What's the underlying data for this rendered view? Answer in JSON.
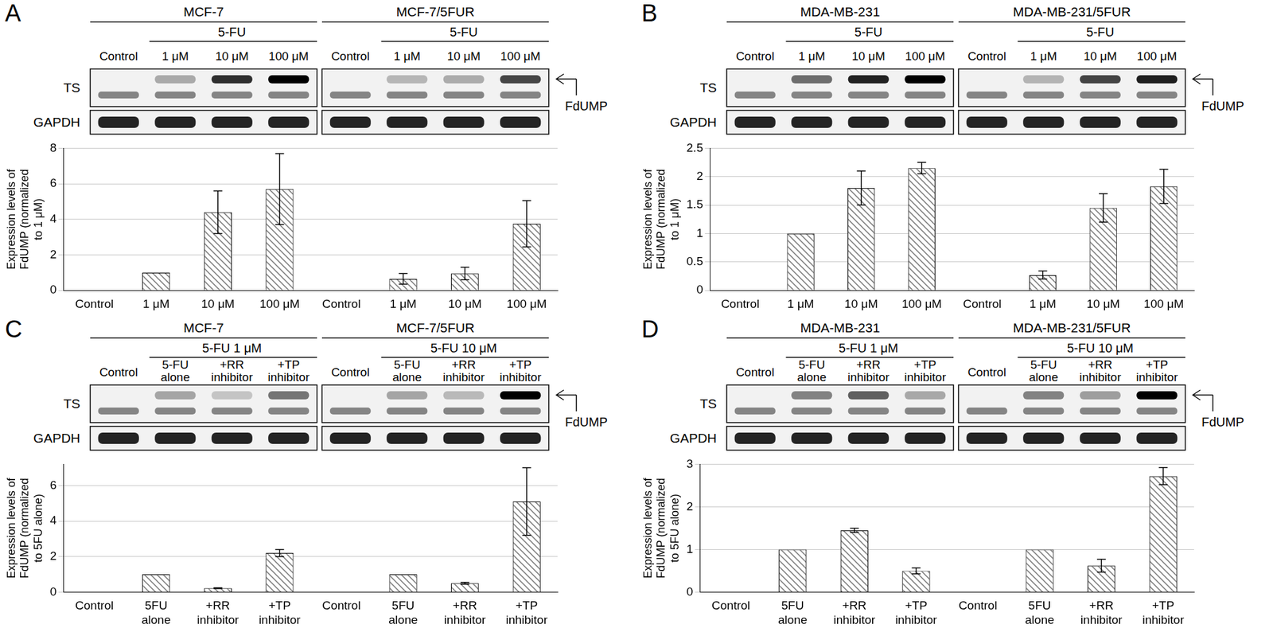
{
  "chart_data": [
    {
      "type": "bar",
      "title": "A",
      "y_label": [
        "Expression levels of",
        "FdUMP (normalized",
        "to 1 μM)"
      ],
      "categories": [
        "Control",
        "1 μM",
        "10 μM",
        "100 μM",
        "Control",
        "1 μM",
        "10 μM",
        "100 μM"
      ],
      "values": [
        null,
        1,
        4.4,
        5.7,
        null,
        0.65,
        0.95,
        3.75
      ],
      "errors": [
        null,
        null,
        1.2,
        2.0,
        null,
        0.3,
        0.35,
        1.3
      ],
      "color": "#808080",
      "ylim": [
        0,
        8
      ],
      "yticks": [
        0,
        2,
        4,
        6,
        8
      ],
      "grid": true,
      "annotations": {
        "groups": [
          {
            "label": "MCF-7",
            "treatment": "5-FU",
            "lanes": [
              "Control",
              "1 μM",
              "10 μM",
              "100 μM"
            ]
          },
          {
            "label": "MCF-7/5FUR",
            "treatment": "5-FU",
            "lanes": [
              "Control",
              "1 μM",
              "10 μM",
              "100 μM"
            ]
          }
        ],
        "rows": [
          "TS",
          "GAPDH"
        ],
        "band": "FdUMP"
      }
    },
    {
      "type": "bar",
      "title": "B",
      "y_label": [
        "Expression levels of",
        "FdUMP (normalized",
        "to 1 μM)"
      ],
      "categories": [
        "Control",
        "1 μM",
        "10 μM",
        "100 μM",
        "Control",
        "1 μM",
        "10 μM",
        "100 μM"
      ],
      "values": [
        null,
        1,
        1.8,
        2.15,
        null,
        0.27,
        1.45,
        1.83
      ],
      "errors": [
        null,
        null,
        0.3,
        0.1,
        null,
        0.07,
        0.25,
        0.3
      ],
      "color": "#808080",
      "ylim": [
        0,
        2.5
      ],
      "yticks": [
        0,
        0.5,
        1,
        1.5,
        2,
        2.5
      ],
      "grid": true,
      "annotations": {
        "groups": [
          {
            "label": "MDA-MB-231",
            "treatment": "5-FU",
            "lanes": [
              "Control",
              "1 μM",
              "10 μM",
              "100 μM"
            ]
          },
          {
            "label": "MDA-MB-231/5FUR",
            "treatment": "5-FU",
            "lanes": [
              "Control",
              "1 μM",
              "10 μM",
              "100 μM"
            ]
          }
        ],
        "rows": [
          "TS",
          "GAPDH"
        ],
        "band": "FdUMP"
      }
    },
    {
      "type": "bar",
      "title": "C",
      "y_label": [
        "Expression levels of",
        "FdUMP (normalized",
        "to 5FU alone)"
      ],
      "categories": [
        "Control",
        "5FU alone",
        "+RR inhibitor",
        "+TP inhibitor",
        "Control",
        "5FU alone",
        "+RR inhibitor",
        "+TP inhibitor"
      ],
      "values": [
        null,
        1,
        0.22,
        2.2,
        null,
        1,
        0.5,
        5.1
      ],
      "errors": [
        null,
        null,
        0.02,
        0.2,
        null,
        null,
        0.05,
        1.9
      ],
      "color": "#808080",
      "ylim": [
        0,
        7.2
      ],
      "yticks": [
        0,
        2,
        4,
        6
      ],
      "grid": true,
      "annotations": {
        "groups": [
          {
            "label": "MCF-7",
            "treatment": "5-FU 1 μM",
            "lanes": [
              "Control",
              "5-FU alone",
              "+RR inhibitor",
              "+TP inhibitor"
            ]
          },
          {
            "label": "MCF-7/5FUR",
            "treatment": "5-FU 10 μM",
            "lanes": [
              "Control",
              "5-FU alone",
              "+RR inhibitor",
              "+TP inhibitor"
            ]
          }
        ],
        "rows": [
          "TS",
          "GAPDH"
        ],
        "band": "FdUMP"
      }
    },
    {
      "type": "bar",
      "title": "D",
      "y_label": [
        "Expression levels of",
        "FdUMP (normalized",
        "to 5FU alone)"
      ],
      "categories": [
        "Control",
        "5FU alone",
        "+RR inhibitor",
        "+TP inhibitor",
        "Control",
        "5FU alone",
        "+RR inhibitor",
        "+TP inhibitor"
      ],
      "values": [
        null,
        1,
        1.45,
        0.5,
        null,
        1,
        0.62,
        2.72
      ],
      "errors": [
        null,
        null,
        0.05,
        0.07,
        null,
        null,
        0.15,
        0.2
      ],
      "color": "#808080",
      "ylim": [
        0,
        3
      ],
      "yticks": [
        0,
        1,
        2,
        3
      ],
      "grid": true,
      "annotations": {
        "groups": [
          {
            "label": "MDA-MB-231",
            "treatment": "5-FU 1 μM",
            "lanes": [
              "Control",
              "5-FU alone",
              "+RR inhibitor",
              "+TP inhibitor"
            ]
          },
          {
            "label": "MDA-MB-231/5FUR",
            "treatment": "5-FU 10 μM",
            "lanes": [
              "Control",
              "5-FU alone",
              "+RR inhibitor",
              "+TP inhibitor"
            ]
          }
        ],
        "rows": [
          "TS",
          "GAPDH"
        ],
        "band": "FdUMP"
      }
    }
  ]
}
